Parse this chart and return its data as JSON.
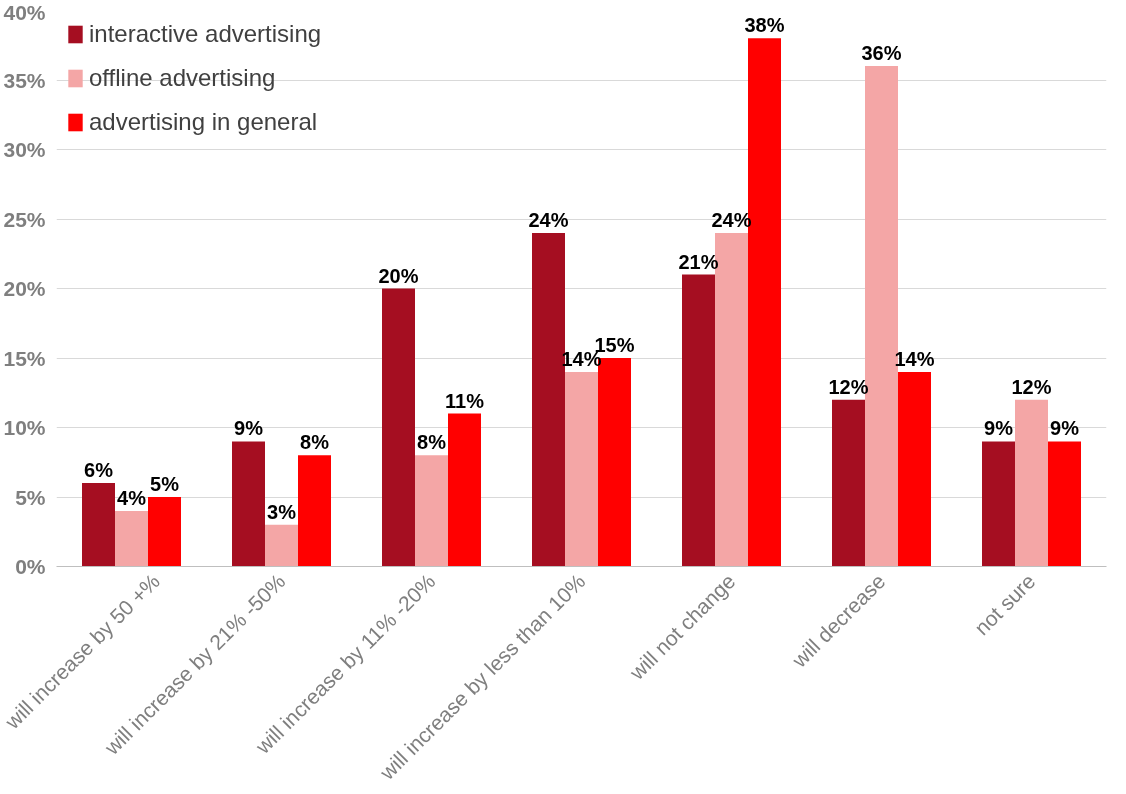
{
  "chart_data": {
    "type": "bar",
    "categories": [
      "will increase by 50 +%",
      "will increase by 21% -50%",
      "will increase by 11% -20%",
      "will increase by less than 10%",
      "will not change",
      "will decrease",
      "not sure"
    ],
    "series": [
      {
        "name": "interactive advertising",
        "color": "#a50e21",
        "values": [
          6,
          9,
          20,
          24,
          21,
          12,
          9
        ],
        "value_labels": [
          "6%",
          "9%",
          "20%",
          "24%",
          "21%",
          "12%",
          "9%"
        ]
      },
      {
        "name": "offline advertising",
        "color": "#f4a6a6",
        "values": [
          4,
          3,
          8,
          14,
          24,
          36,
          12
        ],
        "value_labels": [
          "4%",
          "3%",
          "8%",
          "14%",
          "24%",
          "36%",
          "12%"
        ]
      },
      {
        "name": "advertising in general",
        "color": "#ff0000",
        "values": [
          5,
          8,
          11,
          15,
          38,
          14,
          9
        ],
        "value_labels": [
          "5%",
          "8%",
          "11%",
          "15%",
          "38%",
          "14%",
          "9%"
        ]
      }
    ],
    "ylim": [
      0,
      40
    ],
    "yticks": [
      {
        "value": 0,
        "label": "0%"
      },
      {
        "value": 5,
        "label": "5%"
      },
      {
        "value": 10,
        "label": "10%"
      },
      {
        "value": 15,
        "label": "15%"
      },
      {
        "value": 20,
        "label": "20%"
      },
      {
        "value": 25,
        "label": "25%"
      },
      {
        "value": 30,
        "label": "30%"
      },
      {
        "value": 35,
        "label": "35%"
      },
      {
        "value": 40,
        "label": "40%"
      }
    ],
    "grid": "y",
    "legend": "top left"
  }
}
